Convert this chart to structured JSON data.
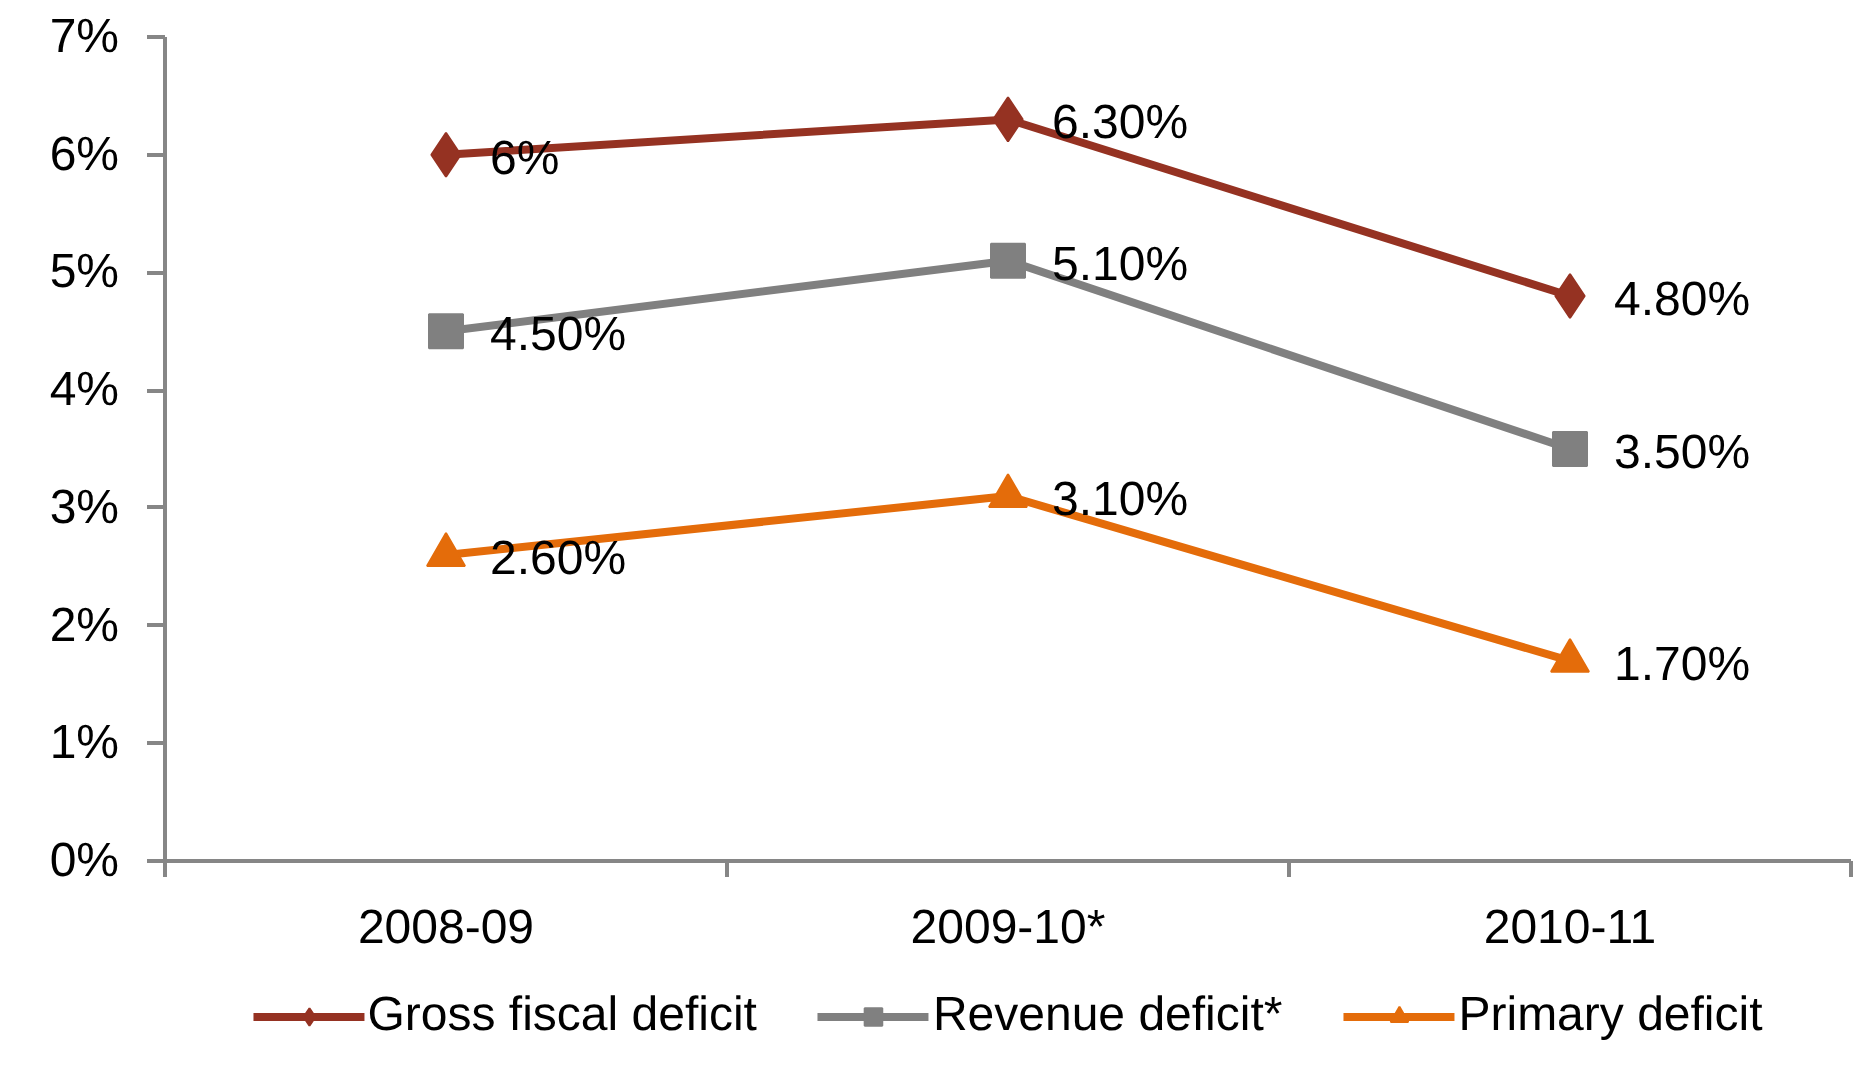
{
  "chart_data": {
    "type": "line",
    "categories": [
      "2008-09",
      "2009-10*",
      "2010-11"
    ],
    "series": [
      {
        "name": "Gross fiscal deficit",
        "color": "#953222",
        "marker": "diamond",
        "values": [
          6,
          6.3,
          4.8
        ],
        "value_labels": [
          "6%",
          "6.30%",
          "4.80%"
        ]
      },
      {
        "name": "Revenue deficit*",
        "color": "#808080",
        "marker": "square",
        "values": [
          4.5,
          5.1,
          3.5
        ],
        "value_labels": [
          "4.50%",
          "5.10%",
          "3.50%"
        ]
      },
      {
        "name": "Primary deficit",
        "color": "#e46c0a",
        "marker": "triangle",
        "values": [
          2.6,
          3.1,
          1.7
        ],
        "value_labels": [
          "2.60%",
          "3.10%",
          "1.70%"
        ]
      }
    ],
    "ylim": [
      0,
      7
    ],
    "yticks": [
      {
        "value": 0,
        "label": "0%"
      },
      {
        "value": 1,
        "label": "1%"
      },
      {
        "value": 2,
        "label": "2%"
      },
      {
        "value": 3,
        "label": "3%"
      },
      {
        "value": 4,
        "label": "4%"
      },
      {
        "value": 5,
        "label": "5%"
      },
      {
        "value": 6,
        "label": "6%"
      },
      {
        "value": 7,
        "label": "7%"
      }
    ],
    "grid": false,
    "legend": "bottom",
    "line_style": "solid"
  }
}
